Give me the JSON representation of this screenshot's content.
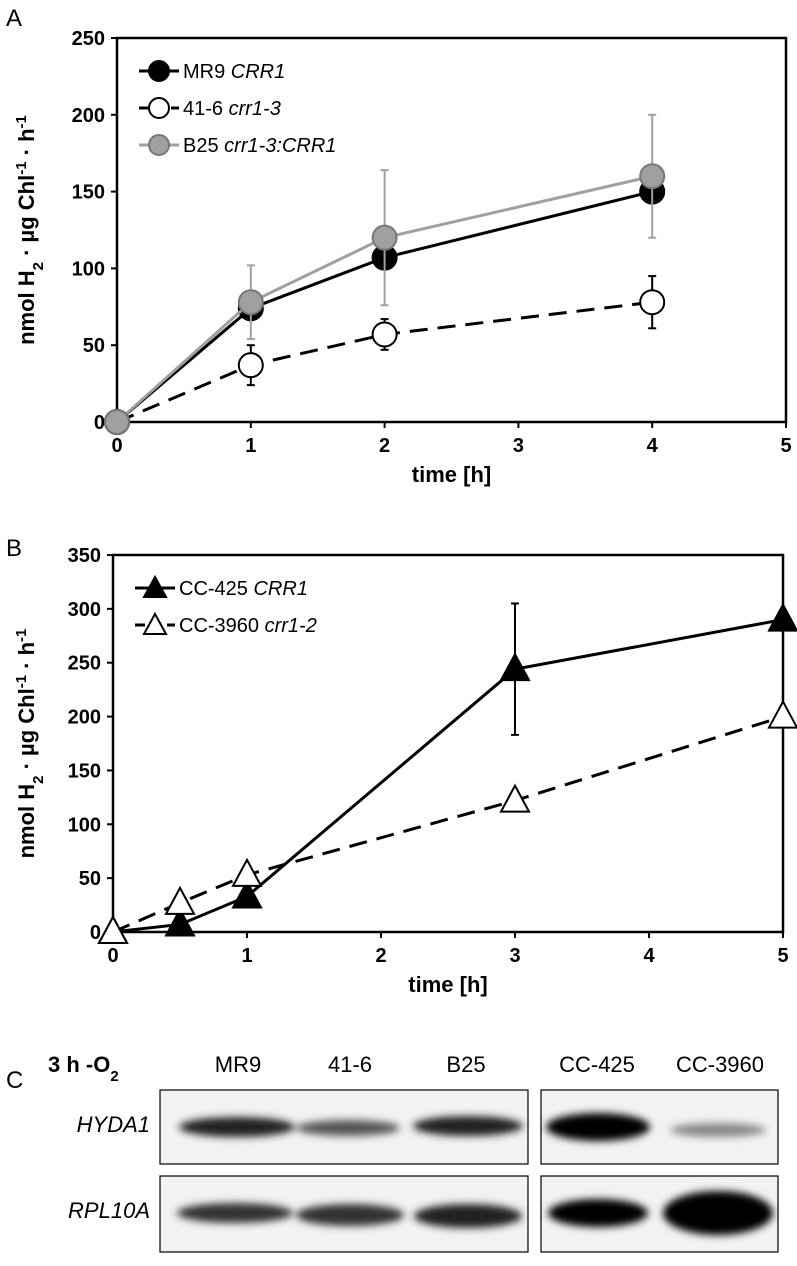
{
  "chart_data": [
    {
      "type": "line",
      "panel_label": "A",
      "x_label": "time [h]",
      "y_label": [
        "nmol H",
        "2",
        " · µg Chl",
        "-1",
        " · h",
        "-1"
      ],
      "xlim": [
        0,
        5
      ],
      "xticks": [
        0,
        1,
        2,
        3,
        4,
        5
      ],
      "ylim": [
        0,
        250
      ],
      "yticks": [
        0,
        50,
        100,
        150,
        200,
        250
      ],
      "legend": "upper left",
      "series": [
        {
          "name": "MR9 CRR1",
          "color": "#000000",
          "marker": "circle",
          "marker_fill": "#000000",
          "dash": false,
          "x": [
            0,
            1,
            2,
            4
          ],
          "values": [
            0,
            74,
            107,
            150
          ]
        },
        {
          "name": "41-6 crr1-3",
          "color": "#000000",
          "marker": "circle",
          "marker_fill": "#ffffff",
          "dash": true,
          "x": [
            0,
            1,
            2,
            4
          ],
          "values": [
            0,
            37,
            57,
            78
          ],
          "errors": [
            null,
            13,
            10,
            17
          ]
        },
        {
          "name": "B25 crr1-3:CRR1",
          "color": "#a0a0a0",
          "marker": "circle",
          "marker_fill": "#a0a0a0",
          "dash": false,
          "x": [
            0,
            1,
            2,
            4
          ],
          "values": [
            0,
            78,
            120,
            160
          ],
          "errors": [
            null,
            24,
            44,
            40
          ]
        }
      ]
    },
    {
      "type": "line",
      "panel_label": "B",
      "x_label": "time [h]",
      "y_label": [
        "nmol H",
        "2",
        " · µg Chl",
        "-1",
        " · h",
        "-1"
      ],
      "xlim": [
        0,
        5
      ],
      "xticks": [
        0,
        1,
        2,
        3,
        4,
        5
      ],
      "ylim": [
        0,
        350
      ],
      "yticks": [
        0,
        50,
        100,
        150,
        200,
        250,
        300,
        350
      ],
      "legend": "upper left",
      "series": [
        {
          "name": "CC-425 CRR1",
          "color": "#000000",
          "marker": "triangle",
          "marker_fill": "#000000",
          "dash": false,
          "x": [
            0,
            0.5,
            1,
            3,
            5
          ],
          "values": [
            0,
            7,
            33,
            244,
            290
          ],
          "errors": [
            null,
            null,
            null,
            61,
            null
          ]
        },
        {
          "name": "CC-3960 crr1-2",
          "color": "#000000",
          "marker": "triangle",
          "marker_fill": "#ffffff",
          "dash": true,
          "x": [
            0,
            0.5,
            1,
            3,
            5
          ],
          "values": [
            0,
            27,
            53,
            122,
            200
          ]
        }
      ]
    }
  ],
  "blot": {
    "panel_label": "C",
    "condition": [
      "3 h -O",
      "2"
    ],
    "lanes": [
      "MR9",
      "41-6",
      "B25",
      "CC-425",
      "CC-3960"
    ],
    "rows": [
      "HYDA1",
      "RPL10A"
    ]
  }
}
